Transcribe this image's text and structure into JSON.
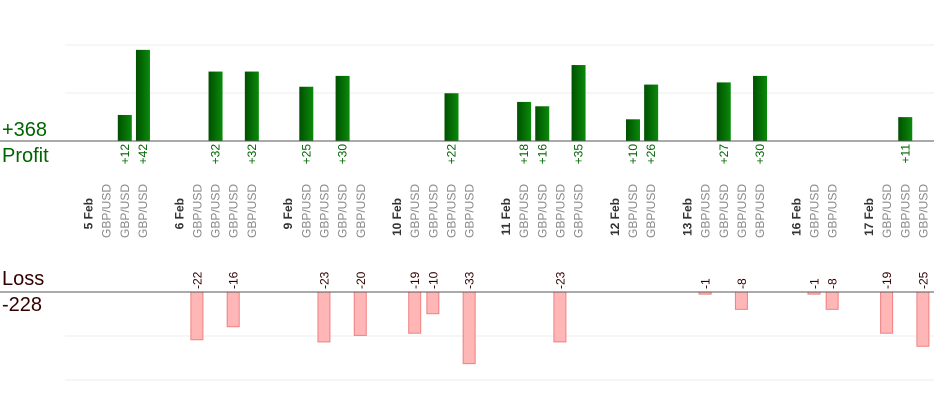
{
  "summary": {
    "profit_total": "+368",
    "profit_label": "Profit",
    "loss_label": "Loss",
    "loss_total": "-228"
  },
  "colors": {
    "profit_bar_dark": "#005000",
    "profit_bar_light": "#0a8a0a",
    "profit_text": "#006400",
    "loss_bar_fill": "#ffb6b6",
    "loss_bar_stroke": "#f08080",
    "loss_text": "#330000",
    "pair_text": "#888888",
    "date_text": "#333333",
    "baseline": "#555555",
    "grid": "#eeeeee"
  },
  "chart_data": {
    "type": "bar",
    "pair_label": "GBP/USD",
    "date_groups": [
      {
        "label": "5 Feb",
        "trades": [
          null,
          12,
          42
        ]
      },
      {
        "label": "6 Feb",
        "trades": [
          -22,
          32,
          -16,
          32
        ]
      },
      {
        "label": "9 Feb",
        "trades": [
          25,
          -23,
          30,
          -20
        ]
      },
      {
        "label": "10 Feb",
        "trades": [
          -19,
          -10,
          22,
          -33
        ]
      },
      {
        "label": "11 Feb",
        "trades": [
          18,
          16,
          -23,
          35
        ]
      },
      {
        "label": "12 Feb",
        "trades": [
          10,
          26
        ]
      },
      {
        "label": "13 Feb",
        "trades": [
          -1,
          27,
          -8,
          30
        ]
      },
      {
        "label": "16 Feb",
        "trades": [
          -1,
          -8
        ]
      },
      {
        "label": "17 Feb",
        "trades": [
          -19,
          11,
          -25
        ]
      }
    ],
    "profit_ylim": [
      0,
      40
    ],
    "loss_ylim": [
      -40,
      0
    ]
  }
}
